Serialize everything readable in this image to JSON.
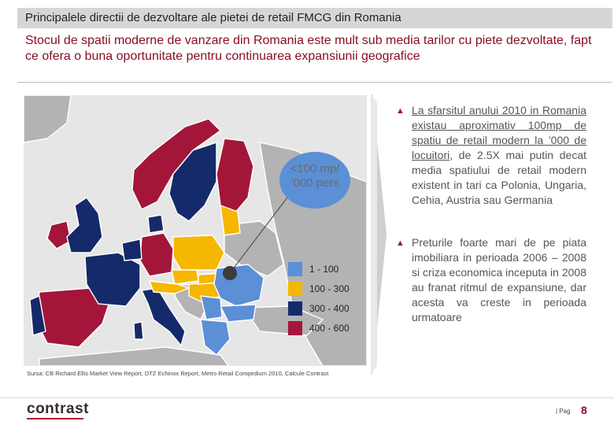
{
  "slide": {
    "section_title": "Principalele directii de dezvoltare ale pietei de retail FMCG din Romania",
    "headline": "Stocul de spatii moderne de vanzare din Romania este mult sub media tarilor cu piete dezvoltate, fapt ce ofera o buna oportunitate pentru continuarea expansiunii geografice"
  },
  "map": {
    "callout": "<100 mp/ ’000 pers",
    "legend": [
      {
        "label": "1 - 100",
        "color": "#5b8fd6"
      },
      {
        "label": "100 - 300",
        "color": "#f5b700"
      },
      {
        "label": "300 - 400",
        "color": "#152a6b"
      },
      {
        "label": "400 - 600",
        "color": "#a3163a"
      }
    ],
    "source": "Sursa: CB Richard Ellis Market View Report, DTZ Echinox Report, Metro Retail Compedium 2010, Calcule Contrast"
  },
  "bullets": [
    {
      "parts": [
        {
          "text": "La sfarsitul anului 2010 in Romania existau aproximativ 100mp de spatiu de retail modern la ’000 de locuitori",
          "underline": true
        },
        {
          "text": ", de 2.5X mai putin decat media spatiului de retail modern existent in tari ca Polonia, Ungaria, Cehia, Austria sau Germania",
          "underline": false
        }
      ]
    },
    {
      "parts": [
        {
          "text": "Preturile foarte mari de pe piata imobiliara in perioada 2006 – 2008 si criza economica inceputa in 2008 au franat ritmul de expansiune, dar acesta va creste in perioada urmatoare",
          "underline": false
        }
      ]
    }
  ],
  "footer": {
    "logo_main": "contrast",
    "page_label": "| Pag",
    "page_number": "8"
  },
  "colors": {
    "accent": "#8a0d24",
    "map_background": "#e6e6e6",
    "other_countries": "#b3b3b3"
  }
}
